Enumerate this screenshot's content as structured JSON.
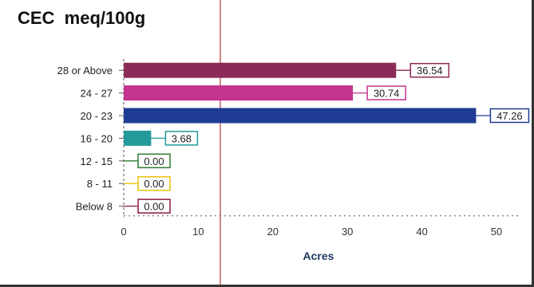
{
  "chart_data": {
    "type": "bar",
    "orientation": "horizontal",
    "title": "CEC  meq/100g",
    "xlabel": "Acres",
    "ylabel": "",
    "categories": [
      "28 or Above",
      "24 - 27",
      "20 - 23",
      "16 - 20",
      "12 - 15",
      "8 - 11",
      "Below 8"
    ],
    "values": [
      36.54,
      30.74,
      47.26,
      3.68,
      0.0,
      0.0,
      0.0
    ],
    "data_labels": [
      "36.54",
      "30.74",
      "47.26",
      "3.68",
      "0.00",
      "0.00",
      "0.00"
    ],
    "colors": [
      "#8b2b57",
      "#c4338e",
      "#1f3c95",
      "#24999a",
      "#2e7d32",
      "#e8c20c",
      "#8b1a3a"
    ],
    "xlim": [
      0,
      50
    ],
    "xticks": [
      0,
      10,
      20,
      30,
      40,
      50
    ],
    "xtick_labels": [
      "0",
      "10",
      "20",
      "30",
      "40",
      "50"
    ],
    "grid": false,
    "legend": "none"
  }
}
